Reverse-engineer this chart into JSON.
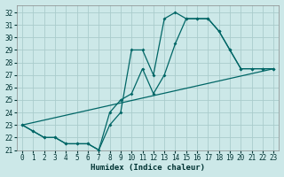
{
  "xlabel": "Humidex (Indice chaleur)",
  "ylabel": "",
  "bg_color": "#cce8e8",
  "grid_color": "#aacccc",
  "line_color": "#006666",
  "xlim": [
    -0.5,
    23.5
  ],
  "ylim": [
    21,
    32.6
  ],
  "yticks": [
    21,
    22,
    23,
    24,
    25,
    26,
    27,
    28,
    29,
    30,
    31,
    32
  ],
  "xticks": [
    0,
    1,
    2,
    3,
    4,
    5,
    6,
    7,
    8,
    9,
    10,
    11,
    12,
    13,
    14,
    15,
    16,
    17,
    18,
    19,
    20,
    21,
    22,
    23
  ],
  "line1_x": [
    0,
    1,
    2,
    3,
    4,
    5,
    6,
    7,
    8,
    9,
    10,
    11,
    12,
    13,
    14,
    15,
    16,
    17,
    18,
    19,
    20,
    21,
    22,
    23
  ],
  "line1_y": [
    23.0,
    22.5,
    22.0,
    22.0,
    21.5,
    21.5,
    21.5,
    21.0,
    23.0,
    24.0,
    29.0,
    29.0,
    27.0,
    31.5,
    32.0,
    31.5,
    31.5,
    31.5,
    30.5,
    29.0,
    27.5,
    27.5,
    27.5,
    27.5
  ],
  "line2_x": [
    0,
    1,
    2,
    3,
    4,
    5,
    6,
    7,
    8,
    9,
    10,
    11,
    12,
    13,
    14,
    15,
    16,
    17,
    18,
    19,
    20,
    21,
    22,
    23
  ],
  "line2_y": [
    23.0,
    22.5,
    22.0,
    22.0,
    21.5,
    21.5,
    21.5,
    21.0,
    24.0,
    25.0,
    25.5,
    27.5,
    25.5,
    27.0,
    29.5,
    31.5,
    31.5,
    31.5,
    30.5,
    29.0,
    27.5,
    27.5,
    27.5,
    27.5
  ],
  "line3_x": [
    0,
    23
  ],
  "line3_y": [
    23.0,
    27.5
  ]
}
